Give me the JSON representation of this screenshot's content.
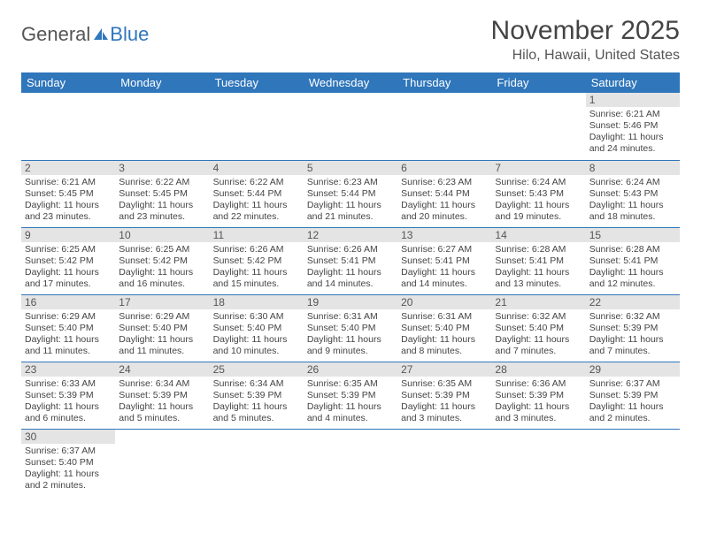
{
  "logo": {
    "general": "General",
    "blue": "Blue"
  },
  "header": {
    "title": "November 2025",
    "location": "Hilo, Hawaii, United States"
  },
  "colors": {
    "header_bg": "#2f76bb",
    "header_text": "#ffffff",
    "daynum_bg": "#e4e4e4",
    "row_border": "#2f76bb",
    "body_text": "#444444"
  },
  "fonts": {
    "title_size_pt": 22,
    "location_size_pt": 12,
    "weekday_size_pt": 10,
    "body_size_pt": 8
  },
  "calendar": {
    "weekdays": [
      "Sunday",
      "Monday",
      "Tuesday",
      "Wednesday",
      "Thursday",
      "Friday",
      "Saturday"
    ],
    "leading_blank": 6,
    "days": [
      {
        "n": 1,
        "sunrise": "6:21 AM",
        "sunset": "5:46 PM",
        "daylight": "11 hours and 24 minutes."
      },
      {
        "n": 2,
        "sunrise": "6:21 AM",
        "sunset": "5:45 PM",
        "daylight": "11 hours and 23 minutes."
      },
      {
        "n": 3,
        "sunrise": "6:22 AM",
        "sunset": "5:45 PM",
        "daylight": "11 hours and 23 minutes."
      },
      {
        "n": 4,
        "sunrise": "6:22 AM",
        "sunset": "5:44 PM",
        "daylight": "11 hours and 22 minutes."
      },
      {
        "n": 5,
        "sunrise": "6:23 AM",
        "sunset": "5:44 PM",
        "daylight": "11 hours and 21 minutes."
      },
      {
        "n": 6,
        "sunrise": "6:23 AM",
        "sunset": "5:44 PM",
        "daylight": "11 hours and 20 minutes."
      },
      {
        "n": 7,
        "sunrise": "6:24 AM",
        "sunset": "5:43 PM",
        "daylight": "11 hours and 19 minutes."
      },
      {
        "n": 8,
        "sunrise": "6:24 AM",
        "sunset": "5:43 PM",
        "daylight": "11 hours and 18 minutes."
      },
      {
        "n": 9,
        "sunrise": "6:25 AM",
        "sunset": "5:42 PM",
        "daylight": "11 hours and 17 minutes."
      },
      {
        "n": 10,
        "sunrise": "6:25 AM",
        "sunset": "5:42 PM",
        "daylight": "11 hours and 16 minutes."
      },
      {
        "n": 11,
        "sunrise": "6:26 AM",
        "sunset": "5:42 PM",
        "daylight": "11 hours and 15 minutes."
      },
      {
        "n": 12,
        "sunrise": "6:26 AM",
        "sunset": "5:41 PM",
        "daylight": "11 hours and 14 minutes."
      },
      {
        "n": 13,
        "sunrise": "6:27 AM",
        "sunset": "5:41 PM",
        "daylight": "11 hours and 14 minutes."
      },
      {
        "n": 14,
        "sunrise": "6:28 AM",
        "sunset": "5:41 PM",
        "daylight": "11 hours and 13 minutes."
      },
      {
        "n": 15,
        "sunrise": "6:28 AM",
        "sunset": "5:41 PM",
        "daylight": "11 hours and 12 minutes."
      },
      {
        "n": 16,
        "sunrise": "6:29 AM",
        "sunset": "5:40 PM",
        "daylight": "11 hours and 11 minutes."
      },
      {
        "n": 17,
        "sunrise": "6:29 AM",
        "sunset": "5:40 PM",
        "daylight": "11 hours and 11 minutes."
      },
      {
        "n": 18,
        "sunrise": "6:30 AM",
        "sunset": "5:40 PM",
        "daylight": "11 hours and 10 minutes."
      },
      {
        "n": 19,
        "sunrise": "6:31 AM",
        "sunset": "5:40 PM",
        "daylight": "11 hours and 9 minutes."
      },
      {
        "n": 20,
        "sunrise": "6:31 AM",
        "sunset": "5:40 PM",
        "daylight": "11 hours and 8 minutes."
      },
      {
        "n": 21,
        "sunrise": "6:32 AM",
        "sunset": "5:40 PM",
        "daylight": "11 hours and 7 minutes."
      },
      {
        "n": 22,
        "sunrise": "6:32 AM",
        "sunset": "5:39 PM",
        "daylight": "11 hours and 7 minutes."
      },
      {
        "n": 23,
        "sunrise": "6:33 AM",
        "sunset": "5:39 PM",
        "daylight": "11 hours and 6 minutes."
      },
      {
        "n": 24,
        "sunrise": "6:34 AM",
        "sunset": "5:39 PM",
        "daylight": "11 hours and 5 minutes."
      },
      {
        "n": 25,
        "sunrise": "6:34 AM",
        "sunset": "5:39 PM",
        "daylight": "11 hours and 5 minutes."
      },
      {
        "n": 26,
        "sunrise": "6:35 AM",
        "sunset": "5:39 PM",
        "daylight": "11 hours and 4 minutes."
      },
      {
        "n": 27,
        "sunrise": "6:35 AM",
        "sunset": "5:39 PM",
        "daylight": "11 hours and 3 minutes."
      },
      {
        "n": 28,
        "sunrise": "6:36 AM",
        "sunset": "5:39 PM",
        "daylight": "11 hours and 3 minutes."
      },
      {
        "n": 29,
        "sunrise": "6:37 AM",
        "sunset": "5:39 PM",
        "daylight": "11 hours and 2 minutes."
      },
      {
        "n": 30,
        "sunrise": "6:37 AM",
        "sunset": "5:40 PM",
        "daylight": "11 hours and 2 minutes."
      }
    ],
    "labels": {
      "sunrise_prefix": "Sunrise: ",
      "sunset_prefix": "Sunset: ",
      "daylight_prefix": "Daylight: "
    }
  }
}
